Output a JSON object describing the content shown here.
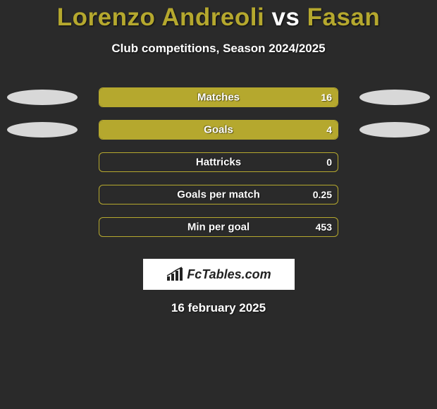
{
  "colors": {
    "background": "#2a2a2a",
    "accent": "#b5a82e",
    "ellipse": "#d8d8d8",
    "text": "#ffffff",
    "logo_bg": "#ffffff",
    "logo_text": "#222222"
  },
  "title": {
    "player1": "Lorenzo Andreoli",
    "vs": "vs",
    "player2": "Fasan"
  },
  "subtitle": "Club competitions, Season 2024/2025",
  "stats": [
    {
      "label": "Matches",
      "value_left": "",
      "value_right": "16",
      "fill_left_pct": 0,
      "fill_right_pct": 100,
      "show_left_ellipse": true,
      "show_right_ellipse": true
    },
    {
      "label": "Goals",
      "value_left": "",
      "value_right": "4",
      "fill_left_pct": 0,
      "fill_right_pct": 100,
      "show_left_ellipse": true,
      "show_right_ellipse": true
    },
    {
      "label": "Hattricks",
      "value_left": "",
      "value_right": "0",
      "fill_left_pct": 0,
      "fill_right_pct": 0,
      "show_left_ellipse": false,
      "show_right_ellipse": false
    },
    {
      "label": "Goals per match",
      "value_left": "",
      "value_right": "0.25",
      "fill_left_pct": 0,
      "fill_right_pct": 0,
      "show_left_ellipse": false,
      "show_right_ellipse": false
    },
    {
      "label": "Min per goal",
      "value_left": "",
      "value_right": "453",
      "fill_left_pct": 0,
      "fill_right_pct": 0,
      "show_left_ellipse": false,
      "show_right_ellipse": false
    }
  ],
  "logo": {
    "text": "FcTables.com"
  },
  "date": "16 february 2025"
}
